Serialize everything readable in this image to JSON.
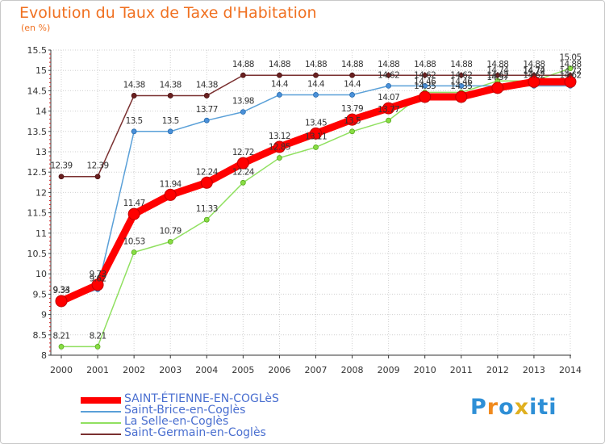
{
  "header": {
    "title": "Evolution du Taux de Taxe d'Habitation",
    "unit": "(en %)"
  },
  "colors": {
    "main": "#ff0000",
    "brice": "#5aa0d8",
    "selle": "#90e060",
    "germain": "#7a3030",
    "grid": "#d0d0d0",
    "axis": "#333333",
    "legend_text": "#4a6fd0"
  },
  "logo": {
    "letters": [
      "P",
      "r",
      "o",
      "x",
      "i",
      "t",
      "i"
    ],
    "colors": [
      "#2e8fd6",
      "#f08a1e",
      "#2e8fd6",
      "#e0b020",
      "#2e8fd6",
      "#2e8fd6",
      "#2e8fd6"
    ]
  },
  "chart_data": {
    "type": "line",
    "title": "Evolution du Taux de Taxe d'Habitation",
    "ylabel": "(en %)",
    "xlabel": "",
    "x": [
      "2000",
      "2001",
      "2002",
      "2003",
      "2004",
      "2005",
      "2006",
      "2007",
      "2008",
      "2009",
      "2010",
      "2011",
      "2012",
      "2013",
      "2014"
    ],
    "ylim": [
      8,
      15.5
    ],
    "yticks": [
      "8",
      "8.5",
      "9",
      "9.5",
      "10",
      "10.5",
      "11",
      "11.5",
      "12",
      "12.5",
      "13",
      "13.5",
      "14",
      "14.5",
      "15",
      "15.5"
    ],
    "series": [
      {
        "name": "SAINT-ÉTIENNE-EN-COGLèS",
        "key": "main",
        "values": [
          9.33,
          9.73,
          11.47,
          11.94,
          12.24,
          12.72,
          13.12,
          13.45,
          13.79,
          14.07,
          14.35,
          14.35,
          14.57,
          14.72,
          14.72
        ],
        "labels": [
          "9.33",
          "9.73",
          "11.47",
          "11.94",
          "12.24",
          "12.72",
          "13.12",
          "13.45",
          "13.79",
          "14.07",
          "14.35",
          "14.35",
          "14.57",
          "14.72",
          "14.72"
        ]
      },
      {
        "name": "Saint-Brice-en-Coglès",
        "key": "brice",
        "values": [
          9.34,
          9.62,
          13.5,
          13.5,
          13.77,
          13.98,
          14.4,
          14.4,
          14.4,
          14.62,
          14.62,
          14.62,
          14.62,
          14.62,
          14.62
        ],
        "labels": [
          "9.34",
          "9.62",
          "13.5",
          "13.5",
          "13.77",
          "13.98",
          "14.4",
          "14.4",
          "14.4",
          "14.62",
          "14.62",
          "14.62",
          "14.62",
          "14.62",
          "14.62"
        ]
      },
      {
        "name": "La Selle-en-Coglès",
        "key": "selle",
        "values": [
          8.21,
          8.21,
          10.53,
          10.79,
          11.33,
          12.24,
          12.85,
          13.11,
          13.5,
          13.77,
          14.46,
          14.46,
          14.74,
          14.74,
          15.05
        ],
        "labels": [
          "8.21",
          "8.21",
          "10.53",
          "10.79",
          "11.33",
          "12.24",
          "12.85",
          "13.11",
          "13.5",
          "13.77",
          "14.46",
          "14.46",
          "14.74",
          "14.74",
          "15.05"
        ]
      },
      {
        "name": "Saint-Germain-en-Coglès",
        "key": "germain",
        "values": [
          12.39,
          12.39,
          14.38,
          14.38,
          14.38,
          14.88,
          14.88,
          14.88,
          14.88,
          14.88,
          14.88,
          14.88,
          14.88,
          14.88,
          14.88
        ],
        "labels": [
          "12.39",
          "12.39",
          "14.38",
          "14.38",
          "14.38",
          "14.88",
          "14.88",
          "14.88",
          "14.88",
          "14.88",
          "14.88",
          "14.88",
          "14.88",
          "14.88",
          "14.88"
        ]
      }
    ],
    "legend_position": "bottom-left"
  }
}
